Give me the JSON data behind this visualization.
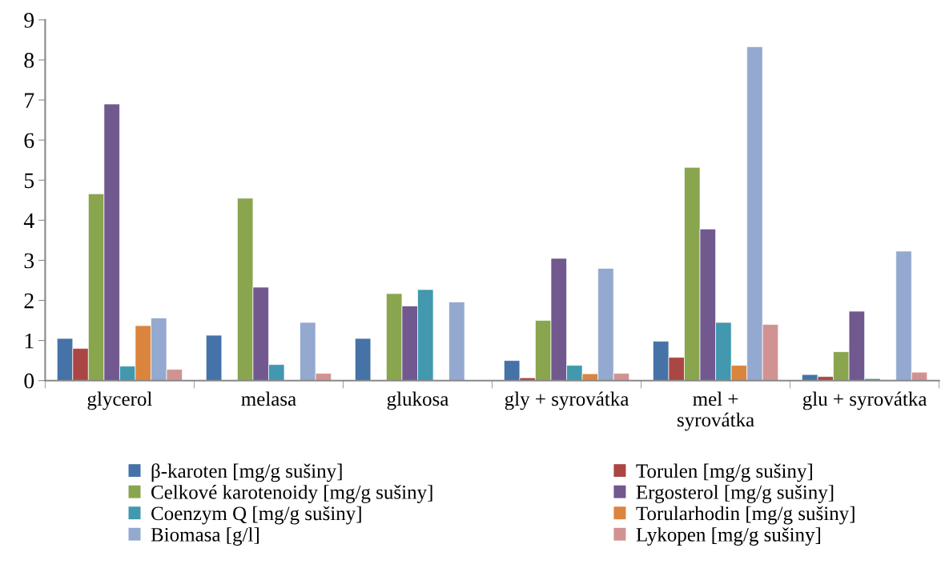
{
  "chart_data": {
    "type": "bar",
    "categories": [
      "glycerol",
      "melasa",
      "glukosa",
      "gly + syrovátka",
      "mel +\nsyrovátka",
      "glu + syrovátka"
    ],
    "series": [
      {
        "name": "β-karoten [mg/g sušiny]",
        "color": "#4572a7",
        "values": [
          1.05,
          1.13,
          1.05,
          0.5,
          0.98,
          0.15
        ]
      },
      {
        "name": "Torulen [mg/g sušiny]",
        "color": "#aa4643",
        "values": [
          0.8,
          null,
          null,
          0.07,
          0.58,
          0.1
        ]
      },
      {
        "name": "Celkové karotenoidy [mg/g sušiny]",
        "color": "#89a54e",
        "values": [
          4.66,
          4.55,
          2.17,
          1.5,
          5.32,
          0.72
        ]
      },
      {
        "name": "Ergosterol [mg/g sušiny]",
        "color": "#71588f",
        "values": [
          6.9,
          2.33,
          1.86,
          3.05,
          3.78,
          1.73
        ]
      },
      {
        "name": "Coenzym Q [mg/g sušiny]",
        "color": "#4198af",
        "values": [
          0.36,
          0.4,
          2.27,
          0.38,
          1.45,
          0.05
        ]
      },
      {
        "name": "Torularhodin [mg/g sušiny]",
        "color": "#db843d",
        "values": [
          1.37,
          null,
          null,
          0.17,
          0.38,
          0.02
        ]
      },
      {
        "name": "Biomasa [g/l]",
        "color": "#93a9cf",
        "values": [
          1.56,
          1.45,
          1.96,
          2.8,
          8.33,
          3.23
        ]
      },
      {
        "name": "Lykopen [mg/g sušiny]",
        "color": "#d19392",
        "values": [
          0.28,
          0.18,
          null,
          0.18,
          1.4,
          0.21
        ]
      }
    ],
    "ylim": [
      0,
      9
    ],
    "yticks": [
      0,
      1,
      2,
      3,
      4,
      5,
      6,
      7,
      8,
      9
    ],
    "grid": false,
    "legend": "bottom"
  }
}
